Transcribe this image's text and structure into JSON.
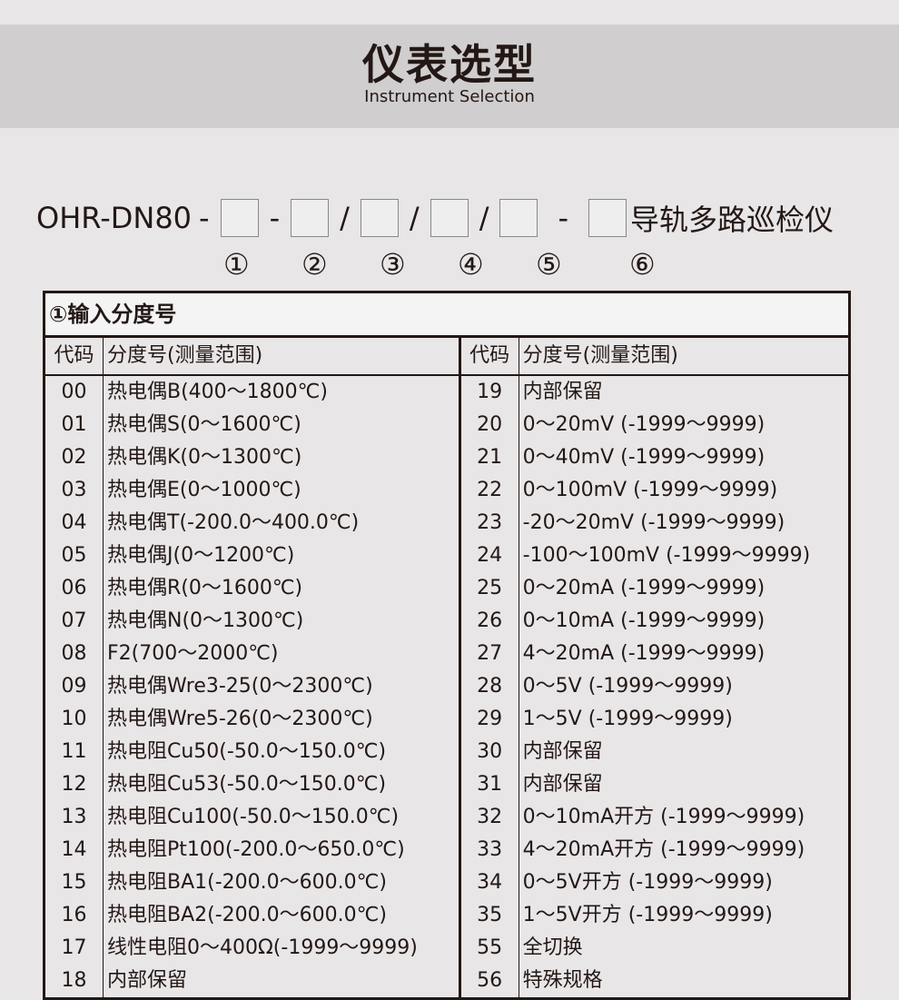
{
  "header": {
    "title": "仪表选型",
    "subtitle": "Instrument Selection"
  },
  "model": {
    "prefix": "OHR-DN80",
    "seps": [
      "-",
      "/",
      "/",
      "/",
      "-"
    ],
    "suffix": "导轨多路巡检仪",
    "positions": [
      "①",
      "②",
      "③",
      "④",
      "⑤",
      "⑥"
    ]
  },
  "table": {
    "title": "①输入分度号",
    "col_code": "代码",
    "col_name": "分度号(测量范围)",
    "left": [
      [
        "00",
        "热电偶B(400～1800℃)"
      ],
      [
        "01",
        "热电偶S(0～1600℃)"
      ],
      [
        "02",
        "热电偶K(0～1300℃)"
      ],
      [
        "03",
        "热电偶E(0～1000℃)"
      ],
      [
        "04",
        "热电偶T(-200.0～400.0℃)"
      ],
      [
        "05",
        "热电偶J(0～1200℃)"
      ],
      [
        "06",
        "热电偶R(0～1600℃)"
      ],
      [
        "07",
        "热电偶N(0～1300℃)"
      ],
      [
        "08",
        "F2(700～2000℃)"
      ],
      [
        "09",
        "热电偶Wre3-25(0～2300℃)"
      ],
      [
        "10",
        "热电偶Wre5-26(0～2300℃)"
      ],
      [
        "11",
        "热电阻Cu50(-50.0～150.0℃)"
      ],
      [
        "12",
        "热电阻Cu53(-50.0～150.0℃)"
      ],
      [
        "13",
        "热电阻Cu100(-50.0～150.0℃)"
      ],
      [
        "14",
        "热电阻Pt100(-200.0～650.0℃)"
      ],
      [
        "15",
        "热电阻BA1(-200.0～600.0℃)"
      ],
      [
        "16",
        "热电阻BA2(-200.0～600.0℃)"
      ],
      [
        "17",
        "线性电阻0～400Ω(-1999～9999)"
      ],
      [
        "18",
        "内部保留"
      ]
    ],
    "right": [
      [
        "19",
        "内部保留"
      ],
      [
        "20",
        "0～20mV (-1999～9999)"
      ],
      [
        "21",
        "0～40mV (-1999～9999)"
      ],
      [
        "22",
        "0～100mV (-1999～9999)"
      ],
      [
        "23",
        "-20～20mV (-1999～9999)"
      ],
      [
        "24",
        "-100～100mV (-1999～9999)"
      ],
      [
        "25",
        "0～20mA (-1999～9999)"
      ],
      [
        "26",
        "0～10mA (-1999～9999)"
      ],
      [
        "27",
        "4～20mA (-1999～9999)"
      ],
      [
        "28",
        "0～5V (-1999～9999)"
      ],
      [
        "29",
        "1～5V (-1999～9999)"
      ],
      [
        "30",
        "内部保留"
      ],
      [
        "31",
        "内部保留"
      ],
      [
        "32",
        "0～10mA开方 (-1999～9999)"
      ],
      [
        "33",
        "4～20mA开方 (-1999～9999)"
      ],
      [
        "34",
        "0～5V开方 (-1999～9999)"
      ],
      [
        "35",
        "1～5V开方 (-1999～9999)"
      ],
      [
        "55",
        "全切换"
      ],
      [
        "56",
        "特殊规格"
      ]
    ]
  }
}
